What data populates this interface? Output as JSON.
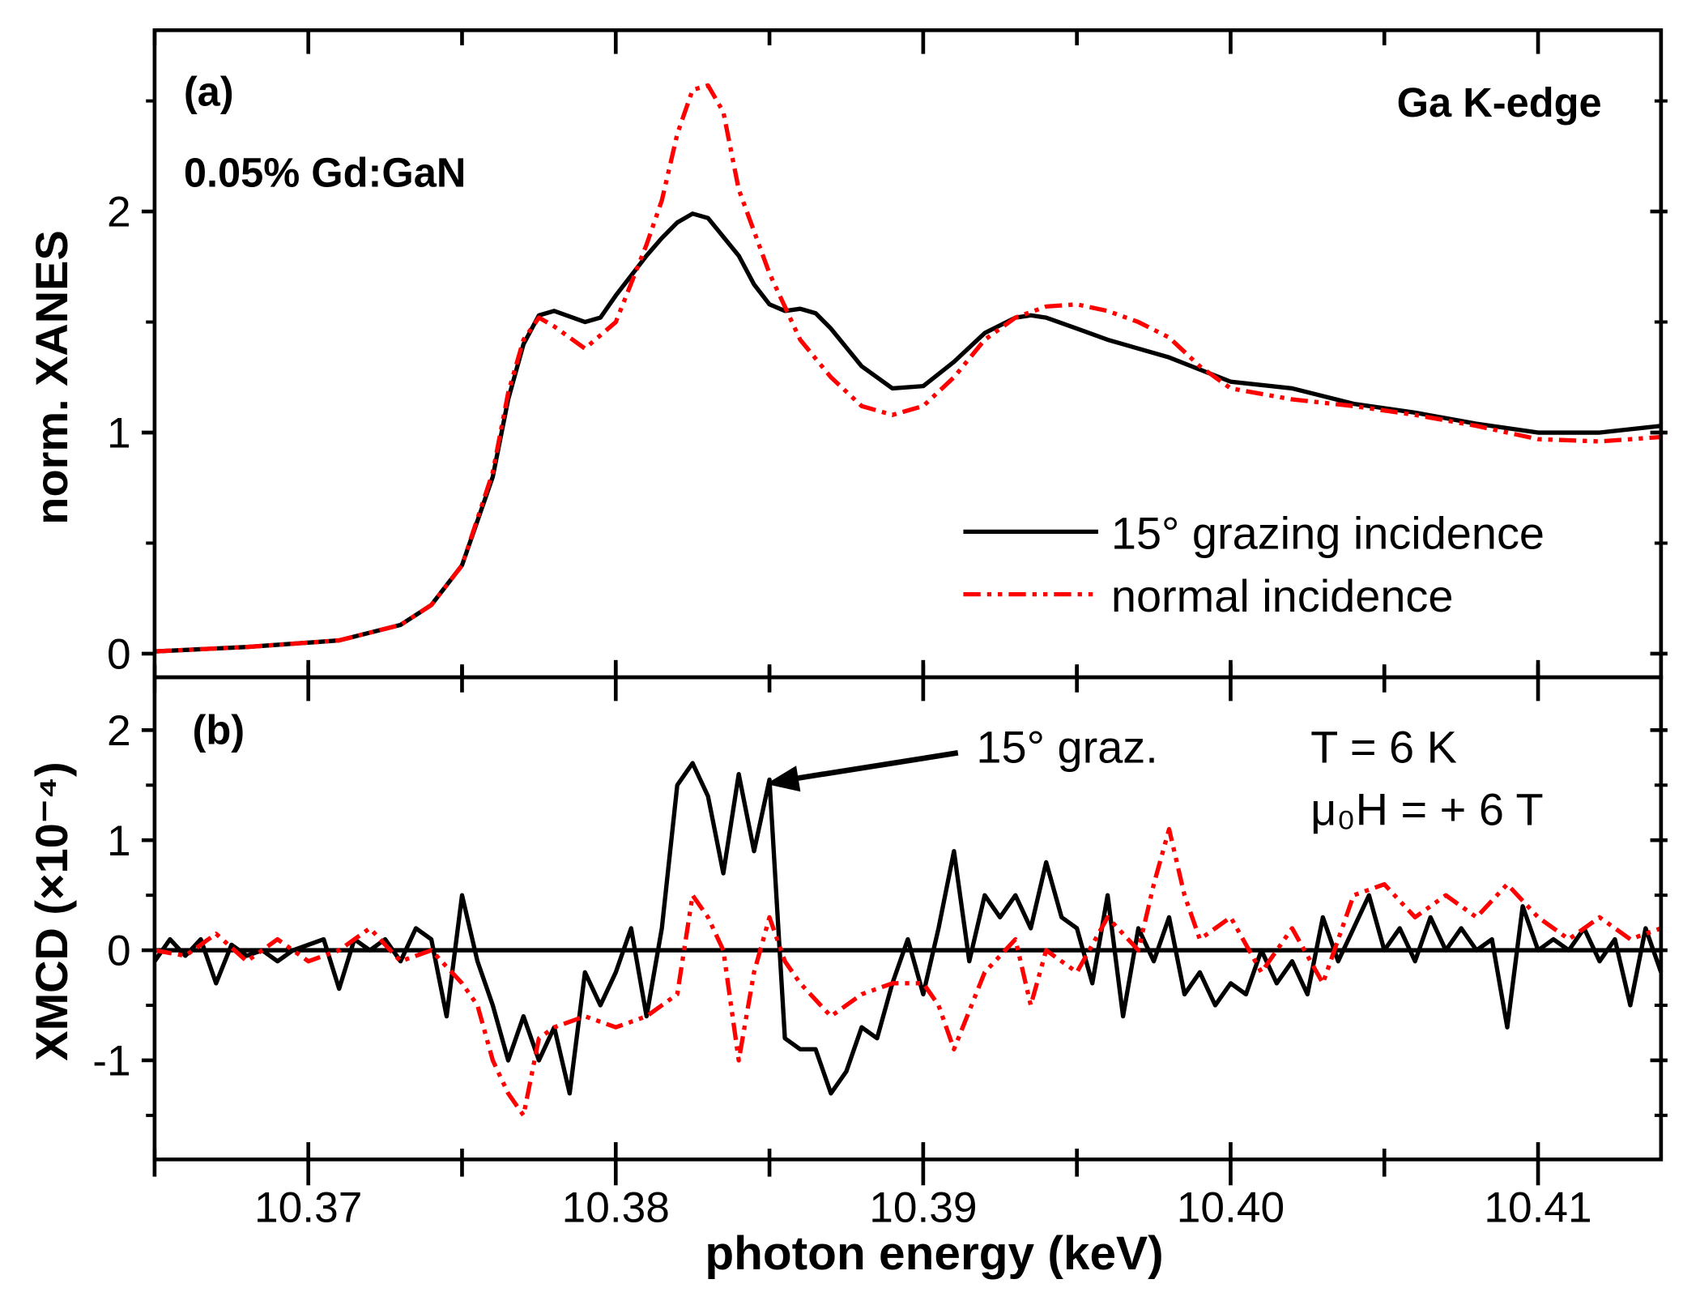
{
  "chart_data": [
    {
      "type": "line",
      "panel_label": "(a)",
      "sample": "0.05% Gd:GaN",
      "edge": "Ga K-edge",
      "ylabel": "norm. XANES",
      "xlim": [
        10.365,
        10.414
      ],
      "ylim": [
        -0.107,
        2.82
      ],
      "yticks": [
        0,
        1,
        2
      ],
      "ytick_labels": [
        "0",
        "1",
        "2"
      ],
      "legend_position": "center-right",
      "series": [
        {
          "name": "15° grazing incidence",
          "color": "#000000",
          "style": "solid",
          "x": [
            10.365,
            10.368,
            10.371,
            10.373,
            10.374,
            10.375,
            10.376,
            10.3765,
            10.377,
            10.3775,
            10.378,
            10.379,
            10.3795,
            10.38,
            10.381,
            10.3815,
            10.382,
            10.3825,
            10.383,
            10.384,
            10.3845,
            10.385,
            10.3855,
            10.386,
            10.3865,
            10.387,
            10.388,
            10.389,
            10.39,
            10.391,
            10.392,
            10.393,
            10.3935,
            10.394,
            10.395,
            10.396,
            10.398,
            10.4,
            10.402,
            10.404,
            10.406,
            10.408,
            10.41,
            10.412,
            10.414
          ],
          "y": [
            0.01,
            0.03,
            0.06,
            0.13,
            0.22,
            0.4,
            0.8,
            1.15,
            1.4,
            1.53,
            1.55,
            1.5,
            1.52,
            1.62,
            1.8,
            1.88,
            1.95,
            1.99,
            1.97,
            1.8,
            1.67,
            1.58,
            1.55,
            1.56,
            1.54,
            1.47,
            1.3,
            1.2,
            1.21,
            1.32,
            1.45,
            1.52,
            1.53,
            1.52,
            1.47,
            1.42,
            1.34,
            1.23,
            1.2,
            1.13,
            1.09,
            1.04,
            1.0,
            1.0,
            1.03
          ]
        },
        {
          "name": "normal incidence",
          "color": "#ff0000",
          "style": "dash-dot",
          "x": [
            10.365,
            10.368,
            10.371,
            10.373,
            10.374,
            10.375,
            10.376,
            10.3765,
            10.377,
            10.3775,
            10.378,
            10.379,
            10.38,
            10.381,
            10.3815,
            10.382,
            10.3825,
            10.383,
            10.3835,
            10.384,
            10.385,
            10.386,
            10.387,
            10.388,
            10.389,
            10.39,
            10.391,
            10.392,
            10.393,
            10.394,
            10.395,
            10.396,
            10.397,
            10.398,
            10.399,
            10.4,
            10.402,
            10.404,
            10.406,
            10.408,
            10.41,
            10.412,
            10.414
          ],
          "y": [
            0.01,
            0.03,
            0.06,
            0.13,
            0.22,
            0.4,
            0.82,
            1.18,
            1.42,
            1.52,
            1.48,
            1.38,
            1.5,
            1.85,
            2.05,
            2.35,
            2.55,
            2.57,
            2.45,
            2.1,
            1.72,
            1.42,
            1.25,
            1.12,
            1.08,
            1.12,
            1.25,
            1.42,
            1.52,
            1.57,
            1.58,
            1.55,
            1.5,
            1.43,
            1.3,
            1.2,
            1.15,
            1.12,
            1.08,
            1.03,
            0.97,
            0.96,
            0.98
          ]
        }
      ]
    },
    {
      "type": "line",
      "panel_label": "(b)",
      "annotation": "15° graz.",
      "conditions": [
        "T = 6 K",
        "μ₀H = + 6 T"
      ],
      "ylabel": "XMCD (×10⁻⁴)",
      "xlabel": "photon energy (keV)",
      "xlim": [
        10.365,
        10.414
      ],
      "ylim": [
        -1.9,
        2.48
      ],
      "xticks": [
        10.37,
        10.38,
        10.39,
        10.4,
        10.41
      ],
      "xtick_labels": [
        "10.37",
        "10.38",
        "10.39",
        "10.40",
        "10.41"
      ],
      "yticks": [
        -1,
        0,
        1,
        2
      ],
      "ytick_labels": [
        "-1",
        "0",
        "1",
        "2"
      ],
      "series": [
        {
          "name": "15° graz.",
          "color": "#000000",
          "style": "solid",
          "x": [
            10.365,
            10.3655,
            10.366,
            10.3665,
            10.367,
            10.3675,
            10.368,
            10.3685,
            10.369,
            10.3695,
            10.37,
            10.3705,
            10.371,
            10.3715,
            10.372,
            10.3725,
            10.373,
            10.3735,
            10.374,
            10.3745,
            10.375,
            10.3755,
            10.376,
            10.3765,
            10.377,
            10.3775,
            10.378,
            10.3785,
            10.379,
            10.3795,
            10.38,
            10.3805,
            10.381,
            10.3815,
            10.382,
            10.3825,
            10.383,
            10.3835,
            10.384,
            10.3845,
            10.385,
            10.3855,
            10.386,
            10.3865,
            10.387,
            10.3875,
            10.388,
            10.3885,
            10.389,
            10.3895,
            10.39,
            10.3905,
            10.391,
            10.3915,
            10.392,
            10.3925,
            10.393,
            10.3935,
            10.394,
            10.3945,
            10.395,
            10.3955,
            10.396,
            10.3965,
            10.397,
            10.3975,
            10.398,
            10.3985,
            10.399,
            10.3995,
            10.4,
            10.4005,
            10.401,
            10.4015,
            10.402,
            10.4025,
            10.403,
            10.4035,
            10.404,
            10.4045,
            10.405,
            10.4055,
            10.406,
            10.4065,
            10.407,
            10.4075,
            10.408,
            10.4085,
            10.409,
            10.4095,
            10.41,
            10.4105,
            10.411,
            10.4115,
            10.412,
            10.4125,
            10.413,
            10.4135,
            10.414
          ],
          "y": [
            -0.1,
            0.1,
            -0.05,
            0.1,
            -0.3,
            0.05,
            -0.05,
            0.0,
            -0.1,
            0.0,
            0.05,
            0.1,
            -0.35,
            0.1,
            0.0,
            0.1,
            -0.1,
            0.2,
            0.1,
            -0.6,
            0.5,
            -0.1,
            -0.5,
            -1.0,
            -0.6,
            -1.0,
            -0.7,
            -1.3,
            -0.2,
            -0.5,
            -0.2,
            0.2,
            -0.6,
            0.2,
            1.5,
            1.7,
            1.4,
            0.7,
            1.6,
            0.9,
            1.55,
            -0.8,
            -0.9,
            -0.9,
            -1.3,
            -1.1,
            -0.7,
            -0.8,
            -0.3,
            0.1,
            -0.4,
            0.2,
            0.9,
            -0.1,
            0.5,
            0.3,
            0.5,
            0.2,
            0.8,
            0.3,
            0.2,
            -0.3,
            0.5,
            -0.6,
            0.2,
            -0.1,
            0.3,
            -0.4,
            -0.2,
            -0.5,
            -0.3,
            -0.4,
            0.0,
            -0.3,
            -0.1,
            -0.4,
            0.3,
            -0.1,
            0.2,
            0.5,
            0.0,
            0.2,
            -0.1,
            0.3,
            0.0,
            0.2,
            0.0,
            0.1,
            -0.7,
            0.4,
            0.0,
            0.1,
            0.0,
            0.2,
            -0.1,
            0.1,
            -0.5,
            0.2,
            -0.2
          ]
        },
        {
          "name": "normal incidence",
          "color": "#ff0000",
          "style": "dash-dot",
          "x": [
            10.365,
            10.366,
            10.367,
            10.368,
            10.369,
            10.37,
            10.371,
            10.372,
            10.373,
            10.374,
            10.375,
            10.3755,
            10.376,
            10.3765,
            10.377,
            10.3775,
            10.378,
            10.379,
            10.38,
            10.381,
            10.382,
            10.3825,
            10.383,
            10.3835,
            10.384,
            10.3845,
            10.385,
            10.3855,
            10.386,
            10.387,
            10.388,
            10.389,
            10.39,
            10.3905,
            10.391,
            10.392,
            10.393,
            10.3935,
            10.394,
            10.395,
            10.396,
            10.397,
            10.3975,
            10.398,
            10.3985,
            10.399,
            10.4,
            10.401,
            10.402,
            10.403,
            10.404,
            10.405,
            10.406,
            10.407,
            10.408,
            10.409,
            10.41,
            10.411,
            10.412,
            10.413,
            10.414
          ],
          "y": [
            0.0,
            -0.05,
            0.15,
            -0.1,
            0.1,
            -0.1,
            0.0,
            0.2,
            -0.1,
            0.0,
            -0.3,
            -0.5,
            -1.0,
            -1.3,
            -1.5,
            -0.8,
            -0.7,
            -0.6,
            -0.7,
            -0.6,
            -0.4,
            0.5,
            0.3,
            0.0,
            -1.0,
            -0.2,
            0.3,
            -0.1,
            -0.3,
            -0.6,
            -0.4,
            -0.3,
            -0.3,
            -0.5,
            -0.9,
            -0.2,
            0.1,
            -0.5,
            0.0,
            -0.2,
            0.3,
            0.0,
            0.6,
            1.1,
            0.5,
            0.1,
            0.3,
            -0.2,
            0.2,
            -0.3,
            0.5,
            0.6,
            0.3,
            0.5,
            0.3,
            0.6,
            0.3,
            0.1,
            0.3,
            0.1,
            0.2
          ]
        }
      ]
    }
  ]
}
